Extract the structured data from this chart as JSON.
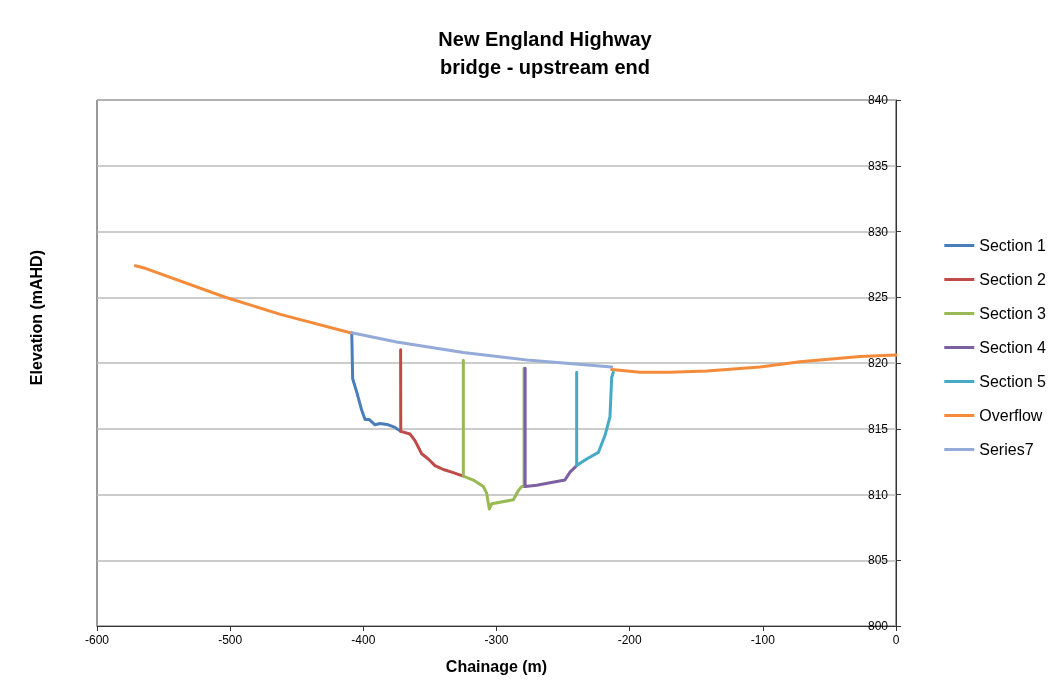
{
  "chart_data": {
    "type": "line",
    "title": "New England Highway\nbridge - upstream end",
    "xlabel": "Chainage (m)",
    "ylabel": "Elevation (mAHD)",
    "xlim": [
      -600,
      0
    ],
    "xticks": [
      -600,
      -500,
      -400,
      -300,
      -200,
      -100,
      0
    ],
    "ylim": [
      800,
      840
    ],
    "yticks": [
      800,
      805,
      810,
      815,
      820,
      825,
      830,
      835,
      840
    ],
    "grid": "y",
    "legend": "right",
    "marker": "none",
    "line_style": "solid",
    "series": [
      {
        "name": "Section 1",
        "color": "#4a7ebb",
        "x": [
          -408.7,
          -408.0,
          -405.0,
          -401.2,
          -398.7,
          -395.5,
          -391.2,
          -387.5,
          -381.2,
          -376.2,
          -371.9
        ],
        "values": [
          822.3,
          818.8,
          817.8,
          816.4,
          815.7,
          815.7,
          815.3,
          815.4,
          815.3,
          815.1,
          814.8
        ]
      },
      {
        "name": "Section 2",
        "color": "#be4b48",
        "x": [
          -372.0,
          -371.9,
          -365.0,
          -361.2,
          -356.2,
          -351.2,
          -346.2,
          -339.9,
          -333.6,
          -324.9
        ],
        "values": [
          821.0,
          814.8,
          814.6,
          814.1,
          813.1,
          812.7,
          812.2,
          811.9,
          811.7,
          811.4
        ]
      },
      {
        "name": "Section 3",
        "color": "#98b954",
        "x": [
          -324.9,
          -324.9,
          -317.4,
          -309.9,
          -307.4,
          -305.4,
          -303.6,
          -287.3,
          -283.6,
          -281.1,
          -279.3,
          -279.3
        ],
        "values": [
          820.2,
          811.4,
          811.1,
          810.6,
          810.1,
          808.9,
          809.3,
          809.6,
          810.3,
          810.6,
          810.6,
          819.6
        ]
      },
      {
        "name": "Section 4",
        "color": "#7d60a0",
        "x": [
          -278.5,
          -278.5,
          -269.8,
          -259.8,
          -248.6,
          -244.8,
          -239.8
        ],
        "values": [
          819.6,
          810.6,
          810.7,
          810.9,
          811.1,
          811.7,
          812.2
        ]
      },
      {
        "name": "Section 5",
        "color": "#46aac5",
        "x": [
          -239.8,
          -239.8,
          -232.3,
          -223.5,
          -218.5,
          -214.8,
          -213.5,
          -212.3
        ],
        "values": [
          819.3,
          812.2,
          812.7,
          813.2,
          814.5,
          815.9,
          818.9,
          819.3
        ]
      },
      {
        "name": "Overflow",
        "color": "#f38b3a",
        "x": [
          -571.2,
          -563.7,
          -503.6,
          -462.3,
          -409.8,
          -300,
          -213.5,
          -192.2,
          -169.7,
          -142.1,
          -102.1,
          -72.1,
          -27.0,
          0
        ],
        "values": [
          827.4,
          827.2,
          825.0,
          823.7,
          822.3,
          null,
          819.5,
          819.3,
          819.3,
          819.4,
          819.7,
          820.1,
          820.5,
          820.6
        ]
      },
      {
        "name": "Series7",
        "color": "#94aad8",
        "x": [
          -408.7,
          -375.0,
          -324.9,
          -274.8,
          -213.5
        ],
        "values": [
          822.3,
          821.6,
          820.8,
          820.2,
          819.7
        ]
      }
    ]
  }
}
